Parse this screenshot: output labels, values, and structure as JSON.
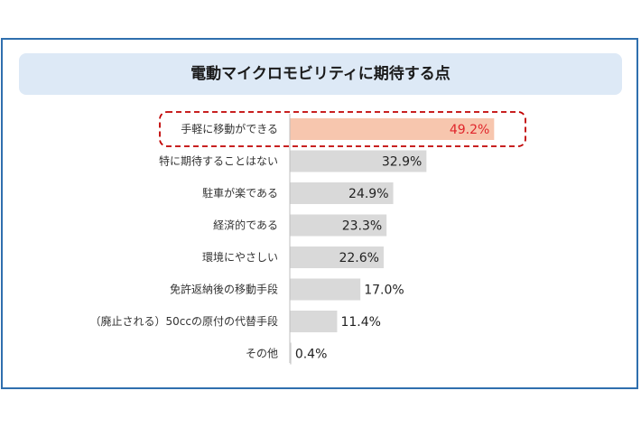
{
  "colors": {
    "frame": "#2f6fae",
    "title_bg": "#dde9f6",
    "bar_default": "#d9d9d9",
    "bar_highlight": "#f7c6ae",
    "highlight_text": "#e0252b",
    "highlight_box": "#c00000"
  },
  "chart_data": {
    "type": "bar",
    "orientation": "horizontal",
    "title": "電動マイクロモビリティに期待する点",
    "categories": [
      "手軽に移動ができる",
      "特に期待することはない",
      "駐車が楽である",
      "経済的である",
      "環境にやさしい",
      "免許返納後の移動手段",
      "（廃止される）50ccの原付の代替手段",
      "その他"
    ],
    "values": [
      49.2,
      32.9,
      24.9,
      23.3,
      22.6,
      17.0,
      11.4,
      0.4
    ],
    "value_labels": [
      "49.2%",
      "32.9%",
      "24.9%",
      "23.3%",
      "22.6%",
      "17.0%",
      "11.4%",
      "0.4%"
    ],
    "unit": "%",
    "xlim": [
      0,
      50
    ],
    "highlight_index": 0,
    "grid": false,
    "legend": "none"
  }
}
